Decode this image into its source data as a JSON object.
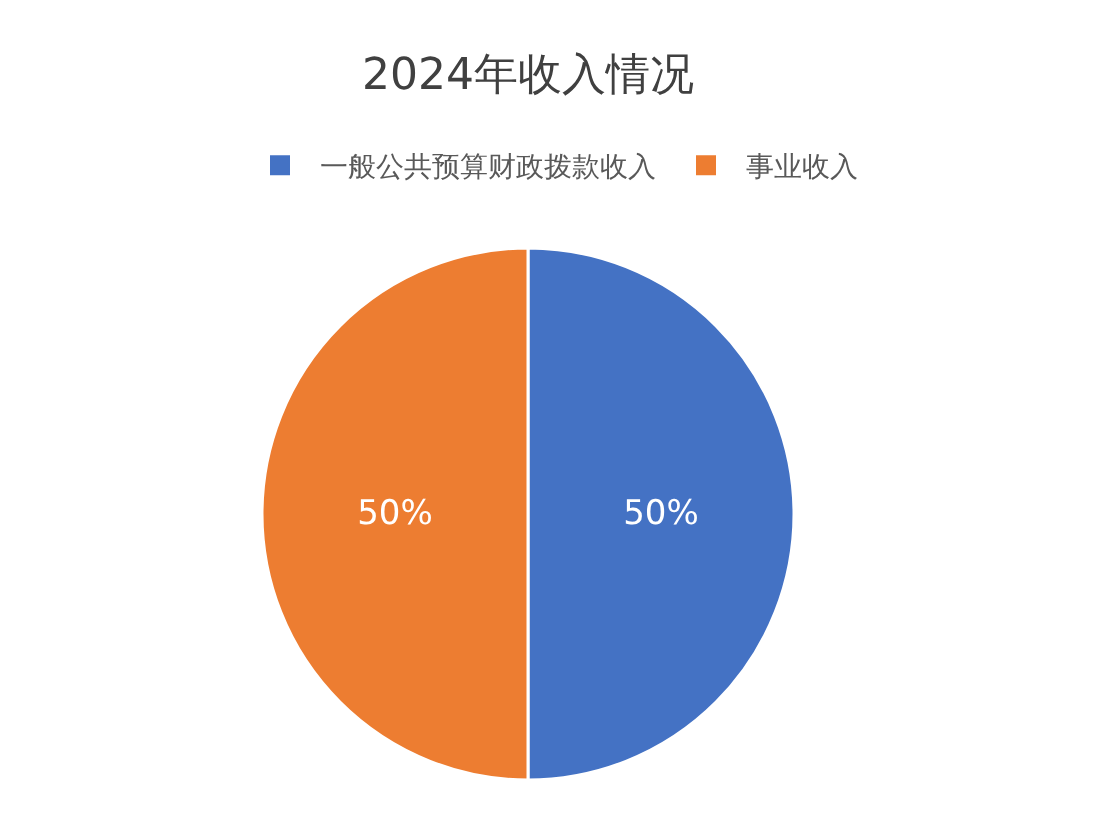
{
  "chart_data": {
    "type": "pie",
    "title": "2024年收入情况",
    "categories": [
      "一般公共预算财政拨款收入",
      "事业收入"
    ],
    "values": [
      50,
      50
    ],
    "colors": [
      "#4472c4",
      "#ed7d31"
    ],
    "value_labels": [
      "50%",
      "50%"
    ],
    "legend": "top"
  }
}
